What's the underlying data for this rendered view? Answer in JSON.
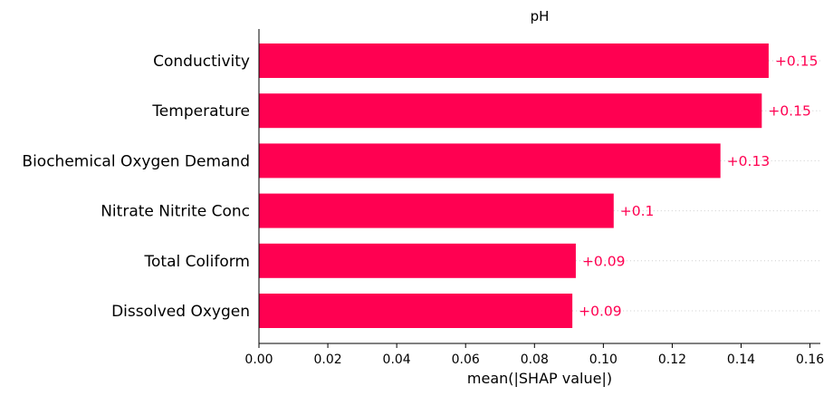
{
  "chart_data": {
    "type": "bar",
    "orientation": "horizontal",
    "title": "pH",
    "xlabel": "mean(|SHAP value|)",
    "ylabel": "",
    "categories": [
      "Conductivity",
      "Temperature",
      "Biochemical Oxygen Demand",
      "Nitrate Nitrite Conc",
      "Total Coliform",
      "Dissolved Oxygen"
    ],
    "values": [
      0.148,
      0.146,
      0.134,
      0.103,
      0.092,
      0.091
    ],
    "data_labels": [
      "+0.15",
      "+0.15",
      "+0.13",
      "+0.1",
      "+0.09",
      "+0.09"
    ],
    "xlim": [
      0,
      0.163
    ],
    "xticks": [
      0.0,
      0.02,
      0.04,
      0.06,
      0.08,
      0.1,
      0.12,
      0.14,
      0.16
    ],
    "xtick_labels": [
      "0.00",
      "0.02",
      "0.04",
      "0.06",
      "0.08",
      "0.10",
      "0.12",
      "0.14",
      "0.16"
    ],
    "grid": "dotted guide lines to the right of each bar",
    "colors": {
      "bar": "#ff0051",
      "label": "#ff0051",
      "guide": "#cccccc",
      "axis": "#000000"
    }
  }
}
